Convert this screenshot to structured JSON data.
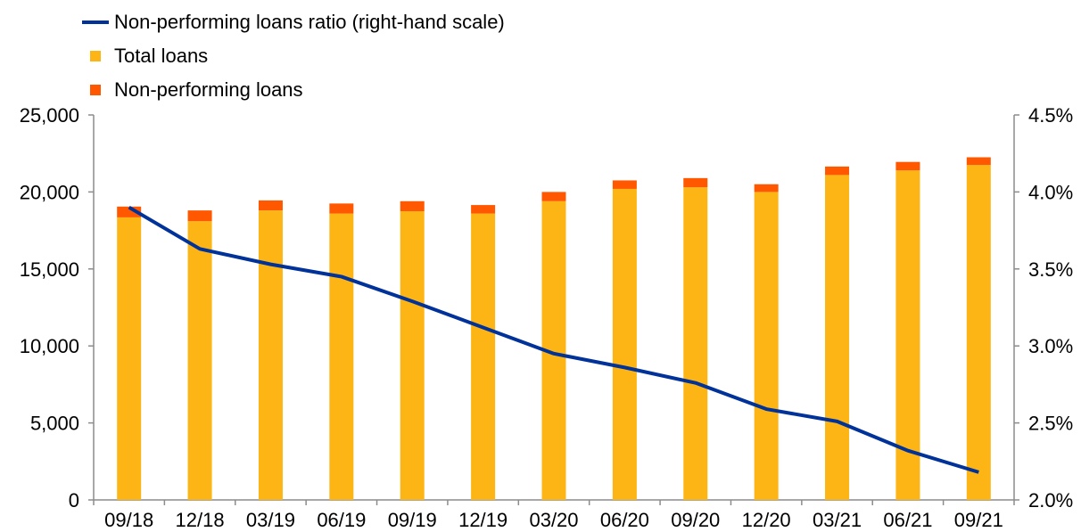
{
  "chart_data": {
    "type": "bar",
    "stacked": true,
    "categories": [
      "09/18",
      "12/18",
      "03/19",
      "06/19",
      "09/19",
      "12/19",
      "03/20",
      "06/20",
      "09/20",
      "12/20",
      "03/21",
      "06/21",
      "09/21"
    ],
    "series": [
      {
        "name": "Total loans",
        "kind": "bar",
        "axis": "left",
        "color": "#FDB515",
        "values": [
          18350,
          18100,
          18800,
          18600,
          18750,
          18600,
          19400,
          20200,
          20300,
          20000,
          21100,
          21400,
          21750
        ]
      },
      {
        "name": "Non-performing loans",
        "kind": "bar",
        "axis": "left",
        "color": "#FF5800",
        "values": [
          700,
          700,
          650,
          650,
          650,
          550,
          600,
          550,
          600,
          500,
          550,
          550,
          500
        ]
      },
      {
        "name": "Non-performing loans ratio (right-hand scale)",
        "kind": "line",
        "axis": "right",
        "color": "#003299",
        "values": [
          3.9,
          3.63,
          3.53,
          3.45,
          3.29,
          3.12,
          2.95,
          2.86,
          2.76,
          2.59,
          2.51,
          2.32,
          2.18
        ]
      }
    ],
    "y_left": {
      "min": 0,
      "max": 25000,
      "ticks": [
        "0",
        "5,000",
        "10,000",
        "15,000",
        "20,000",
        "25,000"
      ]
    },
    "y_right": {
      "min": 2.0,
      "max": 4.5,
      "ticks": [
        "2.0%",
        "2.5%",
        "3.0%",
        "3.5%",
        "4.0%",
        "4.5%"
      ]
    },
    "grid": false,
    "legend_position": "top-left"
  }
}
